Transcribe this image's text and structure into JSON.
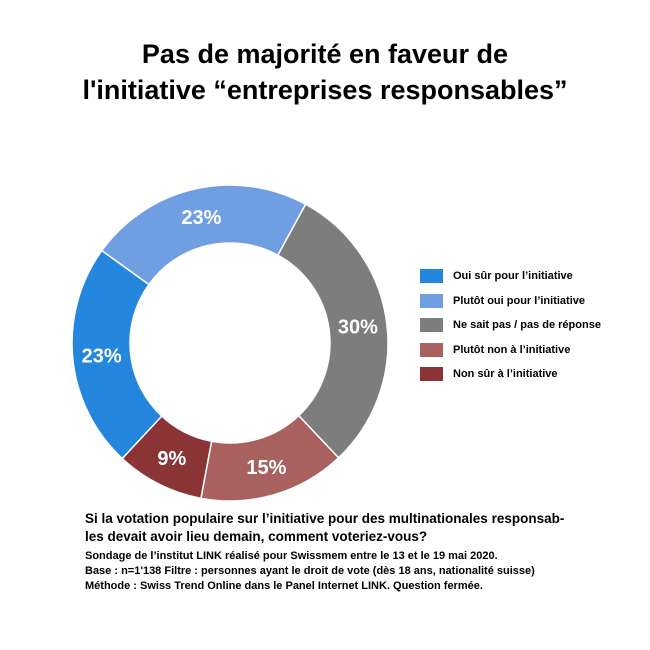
{
  "title": {
    "line1": "Pas de majorité en faveur de",
    "line2": "l'initiative “entreprises responsables”"
  },
  "chart_data": {
    "type": "pie",
    "donut": true,
    "title": "Pas de majorité en faveur de l'initiative “entreprises responsables”",
    "categories": [
      "Oui sûr pour l’initiative",
      "Plutôt oui pour l’initiative",
      "Ne sait pas / pas de réponse",
      "Plutôt non à l’initiative",
      "Non sûr à l’initiative"
    ],
    "values": [
      23,
      23,
      30,
      15,
      9
    ],
    "labels": [
      "23%",
      "23%",
      "30%",
      "15%",
      "9%"
    ],
    "colors": [
      "#2486dc",
      "#6f9fe2",
      "#7d7d7d",
      "#a8615f",
      "#8a3436"
    ],
    "legend_position": "right"
  },
  "question": {
    "line1": "Si la votation populaire sur l’initiative pour des multinationales responsab-",
    "line2": "les devait avoir lieu demain, comment voteriez-vous?"
  },
  "notes": {
    "line1": "Sondage de l’institut LINK réalisé pour Swissmem entre le 13 et le 19 mai 2020.",
    "line2": "Base : n=1'138  Filtre : personnes ayant le droit de vote (dès 18 ans, nationalité suisse)",
    "line3": "Méthode : Swiss Trend Online dans le Panel Internet LINK. Question fermée."
  }
}
